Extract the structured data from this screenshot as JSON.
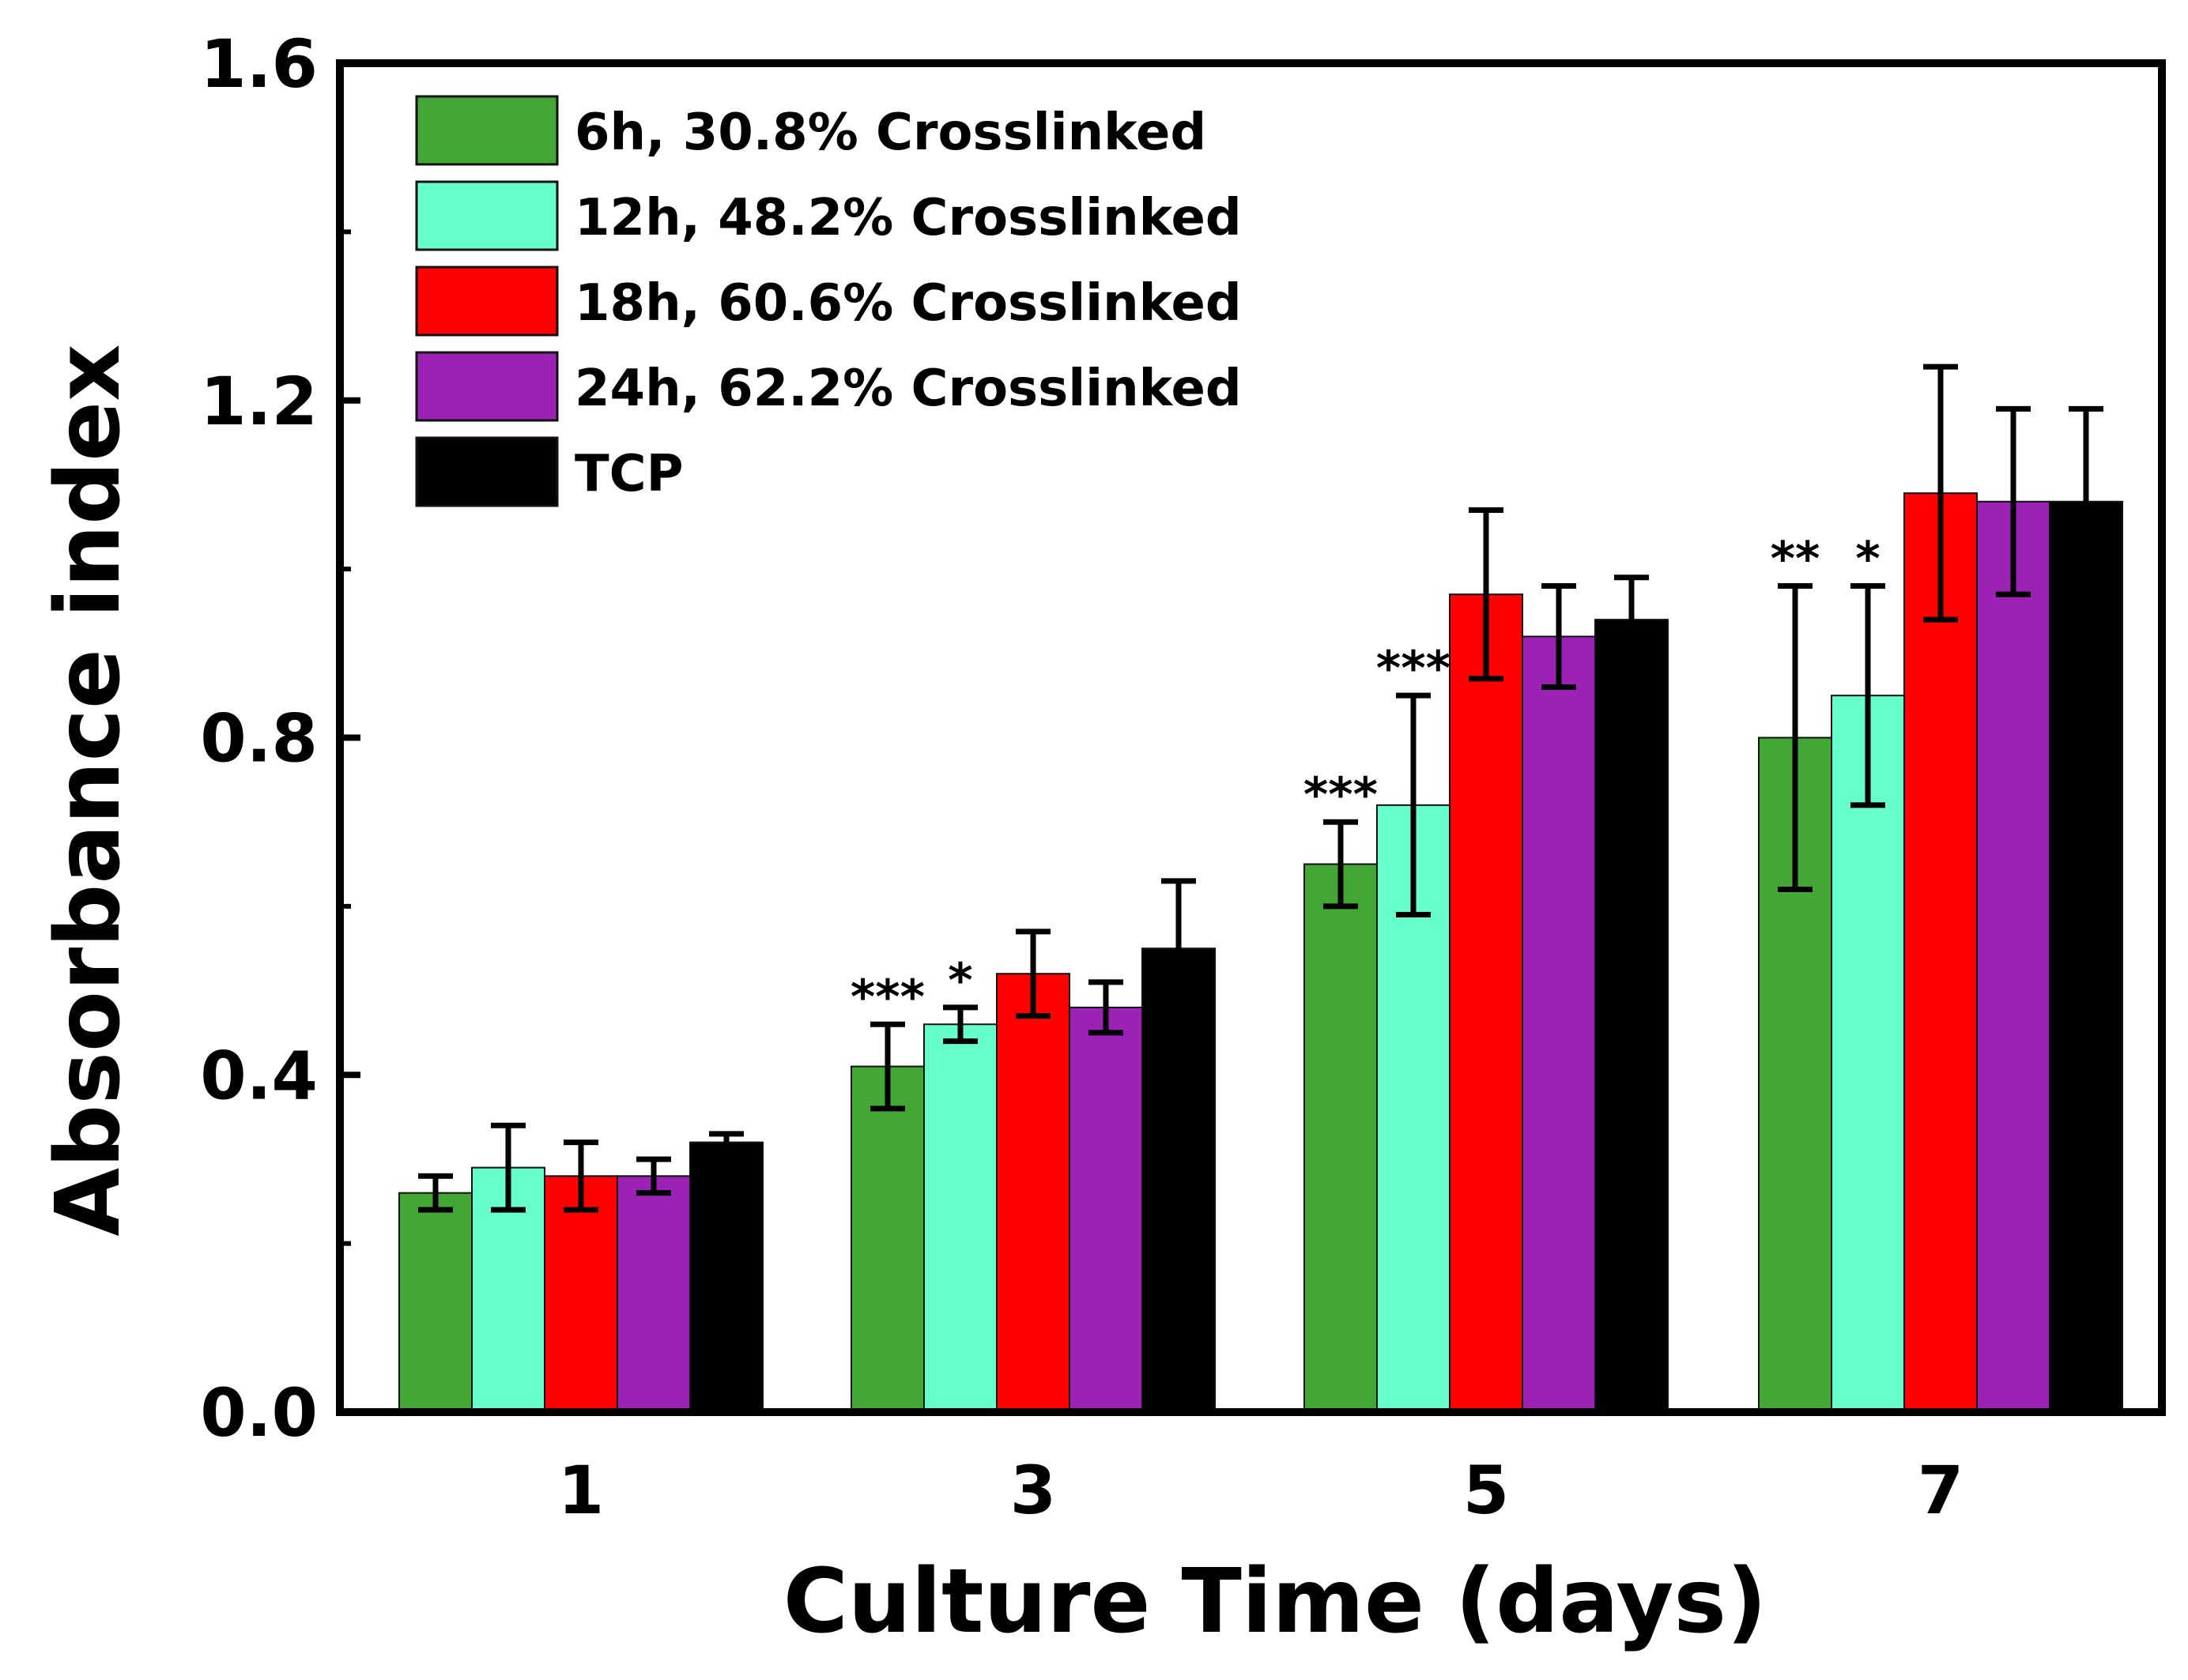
{
  "chart_data": {
    "type": "bar",
    "xlabel": "Culture Time (days)",
    "ylabel": "Absorbance index",
    "ylim": [
      0,
      1.6
    ],
    "yticks": [
      "0.0",
      "0.4",
      "0.8",
      "1.2",
      "1.6"
    ],
    "ytick_values": [
      0,
      0.4,
      0.8,
      1.2,
      1.6
    ],
    "categories": [
      "1",
      "3",
      "5",
      "7"
    ],
    "legend_position": "top-left",
    "series": [
      {
        "name": "6h, 30.8% Crosslinked",
        "color": "#43a736",
        "values": [
          0.26,
          0.41,
          0.65,
          0.8
        ],
        "errors": [
          0.02,
          0.05,
          0.05,
          0.18
        ],
        "significance": [
          "",
          "***",
          "***",
          "**"
        ]
      },
      {
        "name": "12h, 48.2% Crosslinked",
        "color": "#66ffcc",
        "values": [
          0.29,
          0.46,
          0.72,
          0.85
        ],
        "errors": [
          0.05,
          0.02,
          0.13,
          0.13
        ],
        "significance": [
          "",
          "*",
          "***",
          "*"
        ]
      },
      {
        "name": "18h, 60.6% Crosslinked",
        "color": "#ff0000",
        "values": [
          0.28,
          0.52,
          0.97,
          1.09
        ],
        "errors": [
          0.04,
          0.05,
          0.1,
          0.15
        ],
        "significance": [
          "",
          "",
          "",
          ""
        ]
      },
      {
        "name": "24h, 62.2% Crosslinked",
        "color": "#9b22b4",
        "values": [
          0.28,
          0.48,
          0.92,
          1.08
        ],
        "errors": [
          0.02,
          0.03,
          0.06,
          0.11
        ],
        "significance": [
          "",
          "",
          "",
          ""
        ]
      },
      {
        "name": "TCP",
        "color": "#000000",
        "values": [
          0.32,
          0.55,
          0.94,
          1.08
        ],
        "errors": [
          0.01,
          0.08,
          0.05,
          0.11
        ],
        "significance": [
          "",
          "",
          "",
          ""
        ]
      }
    ]
  }
}
